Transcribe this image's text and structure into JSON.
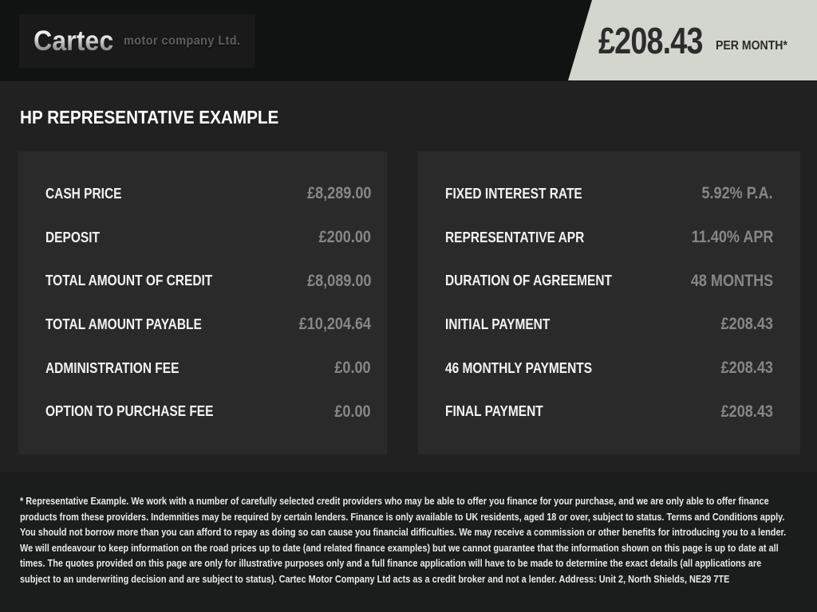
{
  "header": {
    "logo": {
      "brand": "Cartec",
      "tagline": "motor company Ltd."
    },
    "price_banner": {
      "amount": "£208.43",
      "period": "PER MONTH*"
    }
  },
  "page_title": "HP REPRESENTATIVE EXAMPLE",
  "finance": {
    "left_rows": [
      {
        "label": "CASH PRICE",
        "value": "£8,289.00"
      },
      {
        "label": "DEPOSIT",
        "value": "£200.00"
      },
      {
        "label": "TOTAL AMOUNT OF CREDIT",
        "value": "£8,089.00"
      },
      {
        "label": "TOTAL AMOUNT PAYABLE",
        "value": "£10,204.64"
      },
      {
        "label": "ADMINISTRATION FEE",
        "value": "£0.00"
      },
      {
        "label": "OPTION TO PURCHASE FEE",
        "value": "£0.00"
      }
    ],
    "right_rows": [
      {
        "label": "FIXED INTEREST RATE",
        "value": "5.92% P.A."
      },
      {
        "label": "REPRESENTATIVE APR",
        "value": "11.40% APR"
      },
      {
        "label": "DURATION OF AGREEMENT",
        "value": "48 MONTHS"
      },
      {
        "label": "INITIAL PAYMENT",
        "value": "£208.43"
      },
      {
        "label": "46 MONTHLY PAYMENTS",
        "value": "£208.43"
      },
      {
        "label": "FINAL PAYMENT",
        "value": "£208.43"
      }
    ]
  },
  "footer": {
    "disclaimer": "* Representative Example. We work with a number of carefully selected credit providers who may be able to offer you finance for your purchase, and we are only able to offer finance products from these providers. Indemnities may be required by certain lenders. Finance is only available to UK residents, aged 18 or over, subject to status. Terms and Conditions apply. You should not borrow more than you can afford to repay as doing so can cause you financial difficulties. We may receive a commission or other benefits for introducing you to a lender. We will endeavour to keep information on the road prices up to date (and related finance examples) but we cannot guarantee that the information shown on this page is up to date at all times. The quotes provided on this page are only for illustrative purposes only and a full finance application will have to be made to determine the exact details (all applications are subject to an underwriting decision and are subject to status). Cartec Motor Company Ltd acts as a credit broker and not a lender. Address: Unit 2, North Shields, NE29 7TE"
  },
  "colors": {
    "header_bg": "#111212",
    "body_bg": "#212121",
    "panel_bg": "#2a2a2b",
    "footer_bg": "#1b1c1c",
    "banner_bg": "#d3d5cf",
    "banner_text": "#2c2c2c",
    "label_text": "#f3f3f3",
    "value_text": "#868686"
  }
}
